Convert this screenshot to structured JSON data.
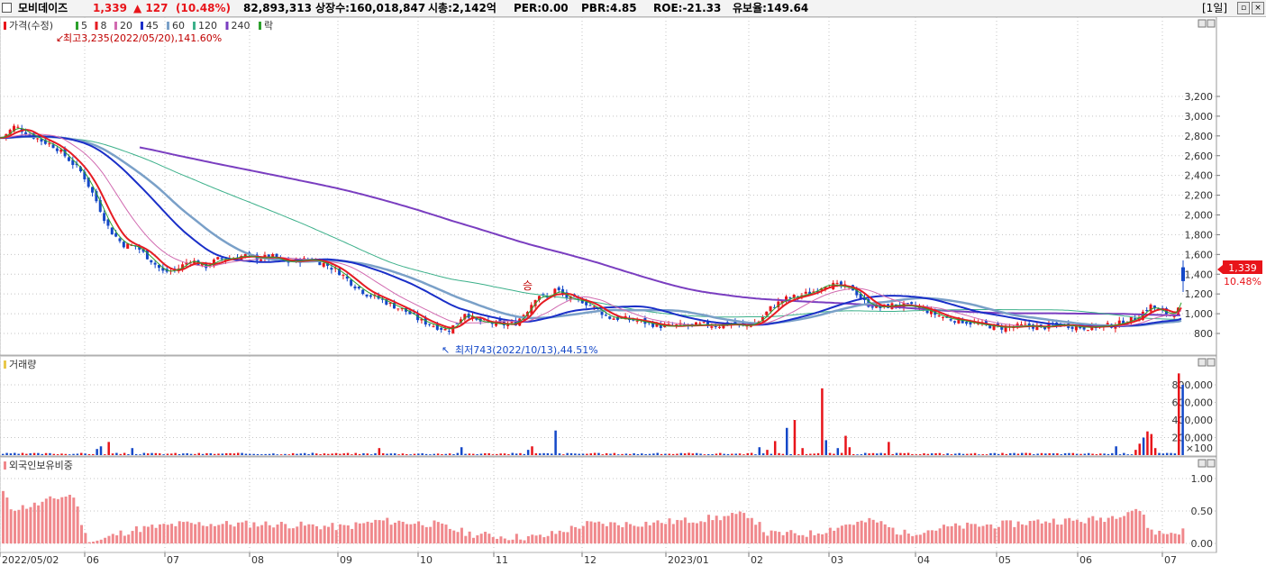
{
  "header": {
    "name": "모비데이즈",
    "price": "1,339",
    "change": "▲ 127",
    "change_pct": "(10.48%)",
    "volume": "82,893,313",
    "listed_shares": "상장수:160,018,847",
    "market_cap": "시총:2,142억",
    "per": "PER:0.00",
    "pbr": "PBR:4.85",
    "roe": "ROE:-21.33",
    "float": "유보율:149.64",
    "period": "[1일]"
  },
  "price_panel": {
    "legend": {
      "price": "가격(수정)",
      "ma": [
        {
          "label": "5",
          "color": "#2ca02c"
        },
        {
          "label": "8",
          "color": "#e51c23"
        },
        {
          "label": "20",
          "color": "#d16ab0"
        },
        {
          "label": "45",
          "color": "#1a2fc8"
        },
        {
          "label": "60",
          "color": "#7aa0c8"
        },
        {
          "label": "120",
          "color": "#3cb08a"
        },
        {
          "label": "240",
          "color": "#7a3ec0"
        }
      ],
      "rak": "락"
    },
    "max_label": "최고3,235(2022/05/20),141.60%",
    "min_label": "최저743(2022/10/13),44.51%",
    "marker_label": "승",
    "current_price_tag": "1,339",
    "current_pct_tag": "10.48%",
    "y_ticks": [
      "3,200",
      "3,000",
      "2,800",
      "2,600",
      "2,400",
      "2,200",
      "2,000",
      "1,800",
      "1,600",
      "1,400",
      "1,200",
      "1,000",
      "800"
    ]
  },
  "volume_panel": {
    "title": "거래량",
    "y_ticks": [
      "800,000",
      "600,000",
      "400,000",
      "200,000"
    ],
    "unit": "×100"
  },
  "foreign_panel": {
    "title": "외국인보유비중",
    "y_ticks": [
      "1.00",
      "0.50",
      "0.00"
    ]
  },
  "x_axis": {
    "labels": [
      "2022/05/02",
      "06",
      "07",
      "08",
      "09",
      "10",
      "11",
      "12",
      "2023/01",
      "02",
      "03",
      "04",
      "05",
      "06",
      "07"
    ]
  },
  "colors": {
    "up": "#e8141a",
    "down": "#1448c8",
    "grid": "#c4c4c4",
    "foreign_bar": "#f0888c"
  }
}
